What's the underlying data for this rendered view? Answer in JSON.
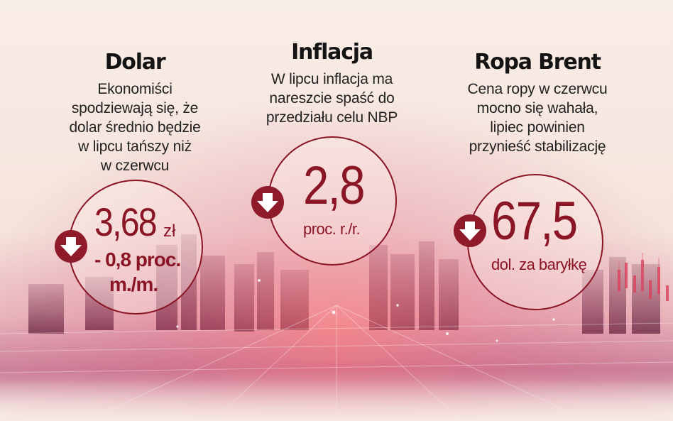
{
  "panels": [
    {
      "title": "Dolar",
      "desc": [
        "Ekonomiści",
        "spodziewają się, że",
        "dolar średnio będzie",
        "w lipcu tańszy niż",
        "w czerwcu"
      ],
      "value": "3,68",
      "unit": "zł",
      "change_line1": "- 0,8 proc.",
      "change_line2": "m./m.",
      "trend_icon": "arrow-down-icon"
    },
    {
      "title": "Inflacja",
      "desc": [
        "W lipcu inflacja ma",
        "nareszcie spaść do",
        "przedziału celu NBP"
      ],
      "value": "2,8",
      "unit": "proc. r./r.",
      "trend_icon": "arrow-down-icon"
    },
    {
      "title": "Ropa Brent",
      "desc": [
        "Cena ropy w czerwcu",
        "mocno się wahała,",
        "lipiec powinien",
        "przynieść stabilizację"
      ],
      "value": "67,5",
      "unit": "dol. za baryłkę",
      "trend_icon": "arrow-down-icon"
    }
  ],
  "colors": {
    "accent": "#8a1524",
    "arrow_bg": "#8e1a2a",
    "background": "#f7ebe4",
    "title": "#141414"
  }
}
